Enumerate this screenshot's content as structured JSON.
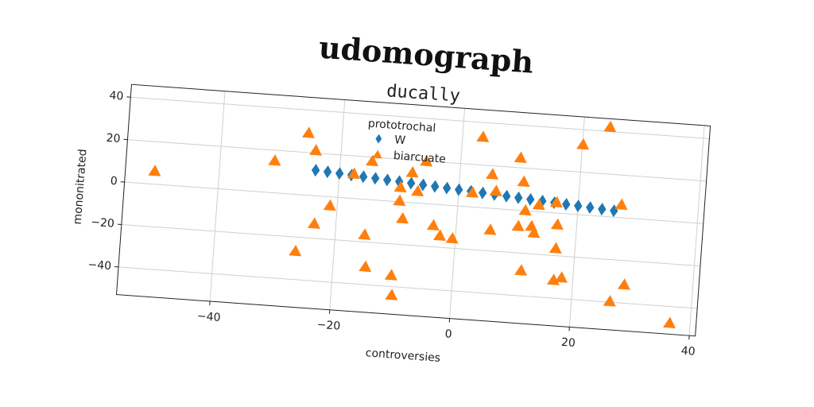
{
  "chart_data": {
    "type": "scatter",
    "title": "udomograph",
    "subtitle": "ducally",
    "xlabel": "controversies",
    "ylabel": "mononitrated",
    "legend_title": "prototrochal",
    "legend": "upper center",
    "grid": true,
    "xlim": [
      -55.6,
      41
    ],
    "ylim": [
      -53,
      46
    ],
    "xticks": [
      {
        "value": -40,
        "label": "−40"
      },
      {
        "value": -20,
        "label": "−20"
      },
      0,
      20,
      40
    ],
    "yticks": [
      {
        "value": -40,
        "label": "−40"
      },
      {
        "value": -20,
        "label": "−20"
      },
      0,
      20,
      40
    ],
    "series": [
      {
        "name": "W",
        "color": "#1f77b4",
        "marker": "diamond",
        "x": [
          -24,
          -22,
          -20,
          -18,
          -16,
          -14,
          -12,
          -10,
          -8,
          -6,
          -4,
          -2,
          0,
          2,
          4,
          6,
          8,
          10,
          12,
          14,
          16,
          18,
          20,
          22,
          24,
          26
        ],
        "values": [
          12,
          11.64,
          11.28,
          10.92,
          10.56,
          10.2,
          9.84,
          9.48,
          9.12,
          8.76,
          8.4,
          8.04,
          7.68,
          7.32,
          6.96,
          6.6,
          6.24,
          5.88,
          5.52,
          5.16,
          4.8,
          4.44,
          4.08,
          3.72,
          3.36,
          3.0
        ]
      },
      {
        "name": "biarcuate",
        "color": "#ff7f0e",
        "marker": "triangle",
        "x": [
          -50.7,
          -30.9,
          -25.6,
          -24.2,
          -26.4,
          -23.6,
          -21.2,
          -17.6,
          -15.1,
          -14.7,
          -14.6,
          -9.7,
          -9.7,
          -9.0,
          -10.2,
          -9.9,
          -7.9,
          -6.8,
          -5.7,
          -3.8,
          -2.6,
          -0.5,
          2.3,
          3.4,
          5.4,
          5.7,
          6.2,
          9.9,
          10.3,
          10.7,
          11.3,
          11.3,
          12.5,
          13,
          13.5,
          16.4,
          16.8,
          16.8,
          16.8,
          18.1,
          20.1,
          24.4,
          27.2,
          26.4,
          28.6,
          36.6
        ],
        "values": [
          6.2,
          15.1,
          29.2,
          21.3,
          -26.6,
          -13.1,
          -4.1,
          11.6,
          -16.6,
          18.2,
          -31.6,
          6.9,
          0.5,
          -7.7,
          -34.7,
          -44,
          14.2,
          5.6,
          19.9,
          -9.9,
          -14.5,
          -15.4,
          6.8,
          33.2,
          16,
          -10.1,
          8.3,
          24.7,
          -7.4,
          13.6,
          0.2,
          -28.1,
          -7,
          -10,
          3.3,
          5,
          -5.4,
          -16.6,
          -31.5,
          -30.1,
          33,
          42.1,
          6.1,
          -39.6,
          -31.3,
          -47.8
        ]
      }
    ]
  }
}
